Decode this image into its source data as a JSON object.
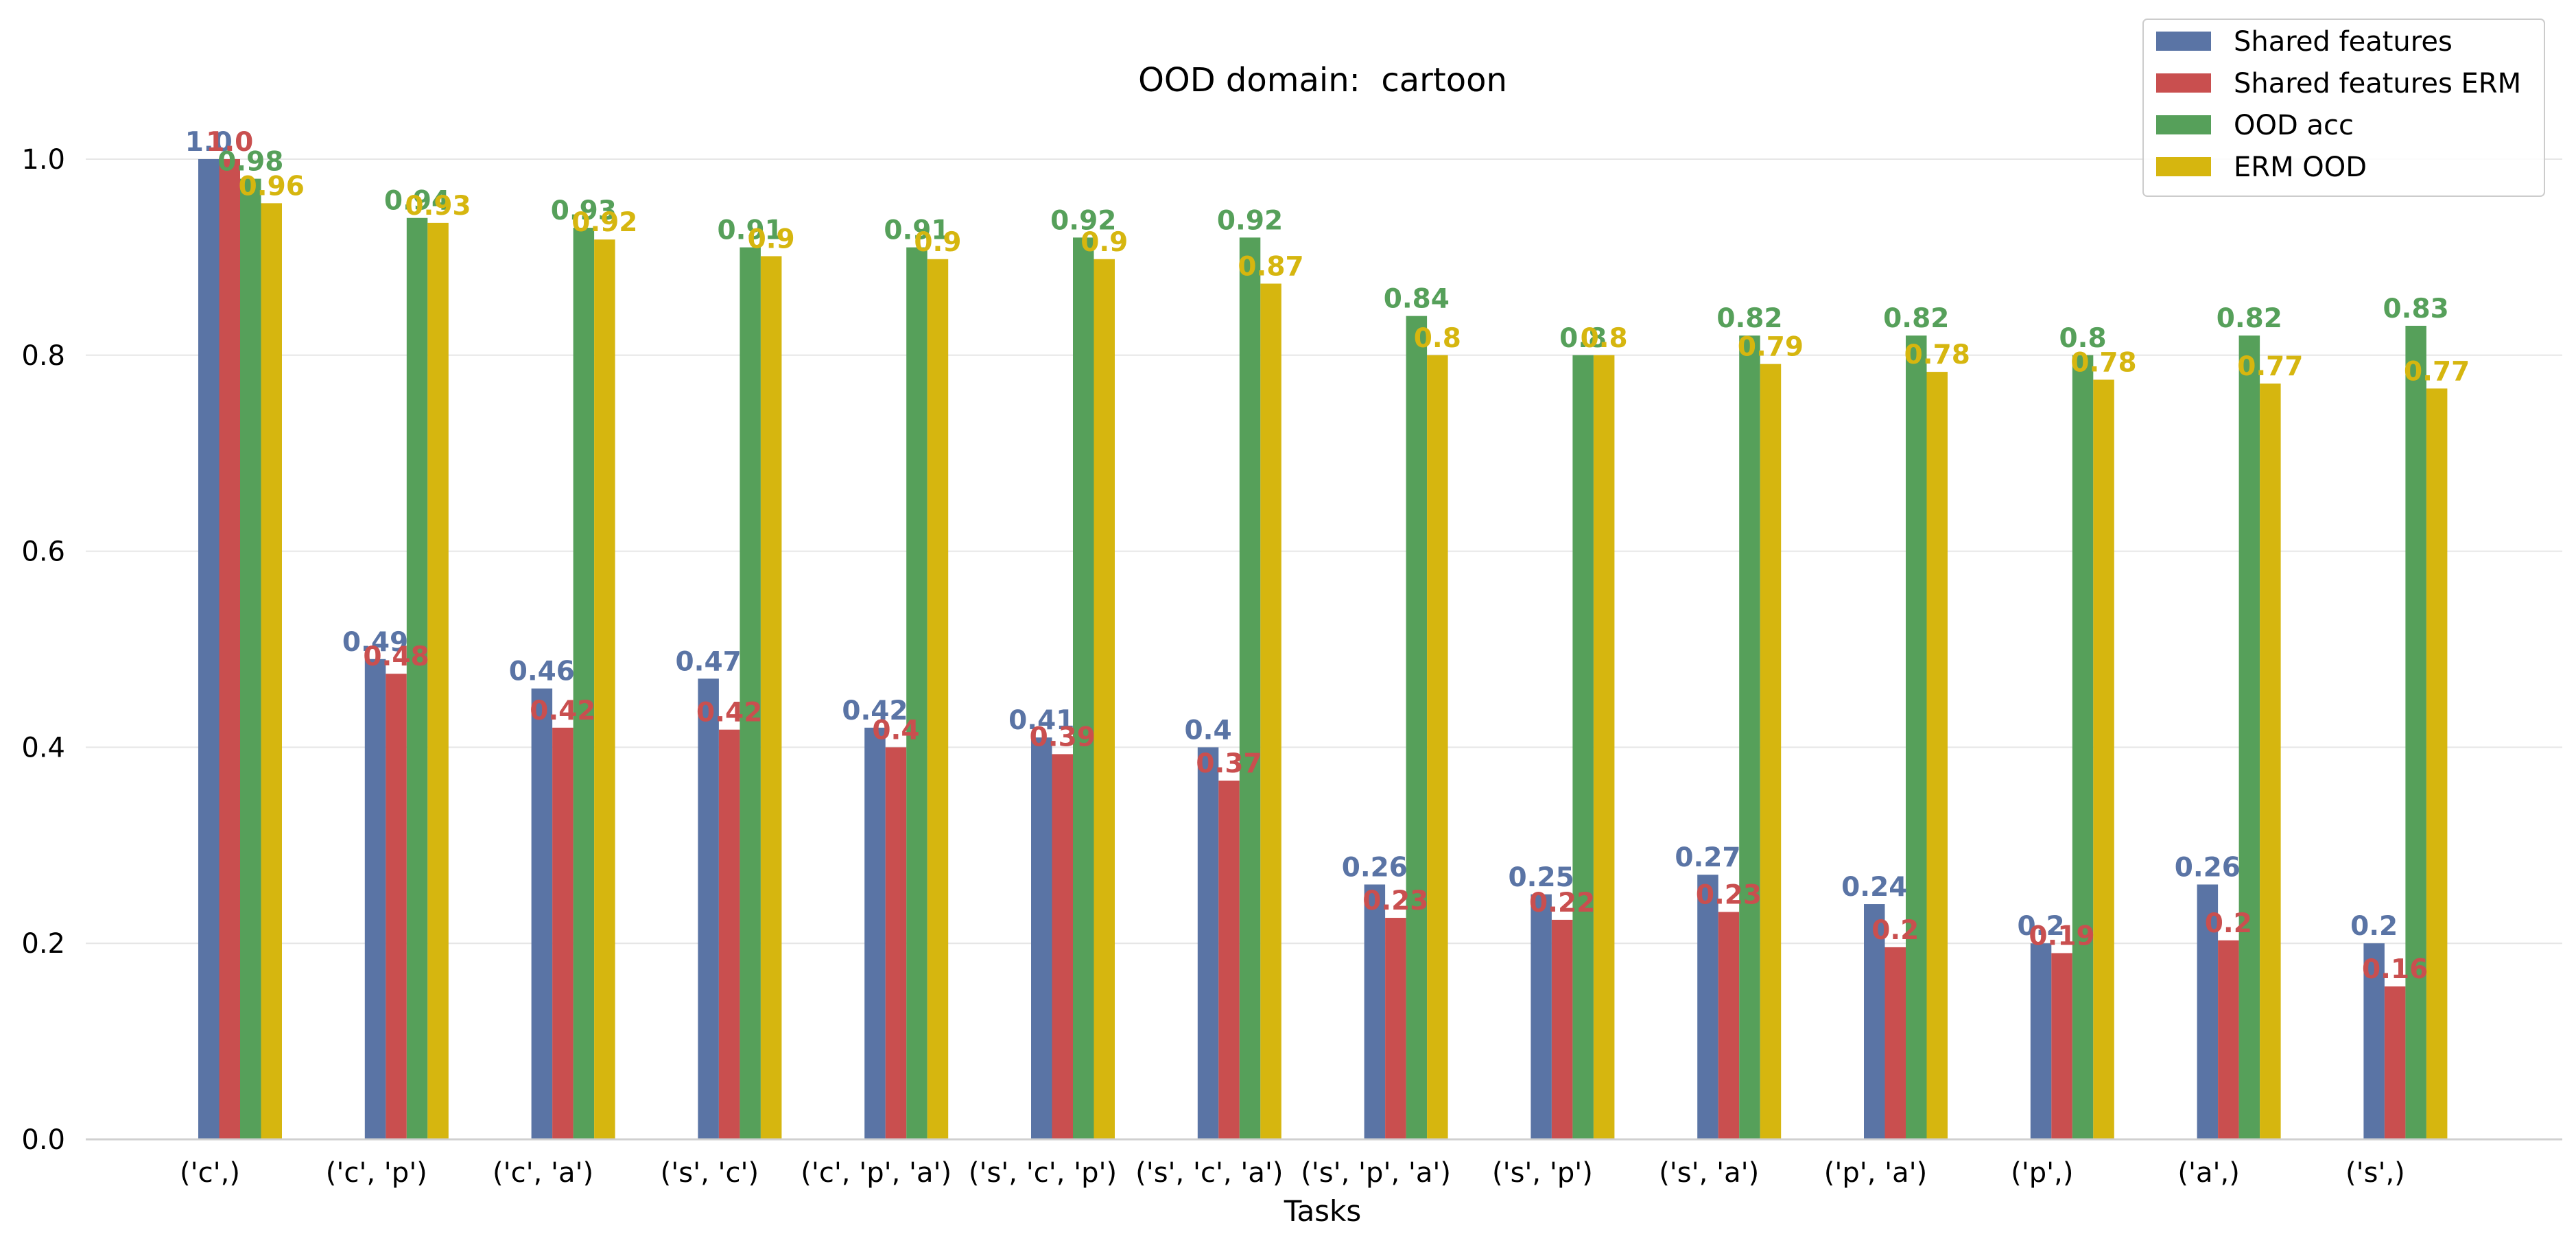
{
  "chart_data": {
    "type": "bar",
    "title": "OOD domain:  cartoon",
    "xlabel": "Tasks",
    "ylabel": "",
    "ylim": [
      0,
      1.0
    ],
    "y_ticks": [
      "0.0",
      "0.2",
      "0.4",
      "0.6",
      "0.8",
      "1.0"
    ],
    "grid": "horizontal",
    "legend_position": "top-right",
    "categories": [
      "('c',)",
      "('c', 'p')",
      "('c', 'a')",
      "('s', 'c')",
      "('c', 'p', 'a')",
      "('s', 'c', 'p')",
      "('s', 'c', 'a')",
      "('s', 'p', 'a')",
      "('s', 'p')",
      "('s', 'a')",
      "('p', 'a')",
      "('p',)",
      "('a',)",
      "('s',)"
    ],
    "series": [
      {
        "name": "Shared features",
        "color": "#5a74a5",
        "values": [
          1.0,
          0.49,
          0.46,
          0.47,
          0.42,
          0.41,
          0.4,
          0.26,
          0.25,
          0.27,
          0.24,
          0.2,
          0.26,
          0.2
        ],
        "labels": [
          "1.0",
          "0.49",
          "0.46",
          "0.47",
          "0.42",
          "0.41",
          "0.4",
          "0.26",
          "0.25",
          "0.27",
          "0.24",
          "0.2",
          "0.26",
          "0.2"
        ]
      },
      {
        "name": "Shared features ERM",
        "color": "#c94f4f",
        "values": [
          1.0,
          0.475,
          0.42,
          0.418,
          0.4,
          0.393,
          0.366,
          0.226,
          0.224,
          0.232,
          0.196,
          0.19,
          0.203,
          0.156
        ],
        "labels": [
          "1.0",
          "0.48",
          "0.42",
          "0.42",
          "0.4",
          "0.39",
          "0.37",
          "0.23",
          "0.22",
          "0.23",
          "0.2",
          "0.19",
          "0.2",
          "0.16"
        ]
      },
      {
        "name": "OOD acc",
        "color": "#56a05a",
        "values": [
          0.98,
          0.94,
          0.93,
          0.91,
          0.91,
          0.92,
          0.92,
          0.84,
          0.8,
          0.82,
          0.82,
          0.8,
          0.82,
          0.83
        ],
        "labels": [
          "0.98",
          "0.94",
          "0.93",
          "0.91",
          "0.91",
          "0.92",
          "0.92",
          "0.84",
          "0.8",
          "0.82",
          "0.82",
          "0.8",
          "0.82",
          "0.83"
        ]
      },
      {
        "name": "ERM OOD",
        "color": "#d6b60f",
        "values": [
          0.955,
          0.935,
          0.918,
          0.901,
          0.898,
          0.898,
          0.873,
          0.8,
          0.8,
          0.791,
          0.783,
          0.775,
          0.771,
          0.766
        ],
        "labels": [
          "0.96",
          "0.93",
          "0.92",
          "0.9",
          "0.9",
          "0.9",
          "0.87",
          "0.8",
          "0.8",
          "0.79",
          "0.78",
          "0.78",
          "0.77",
          "0.77"
        ]
      }
    ]
  }
}
